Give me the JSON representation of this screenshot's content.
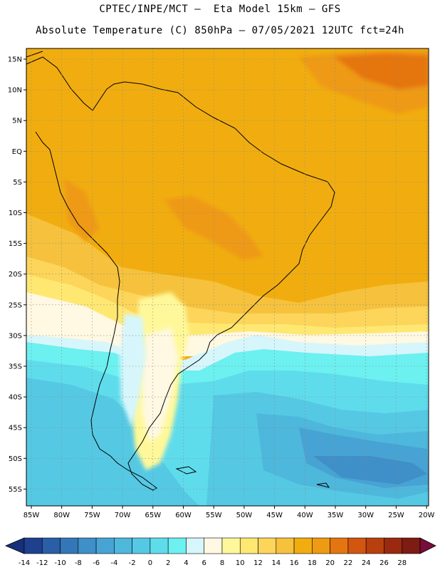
{
  "header": {
    "line1": "CPTEC/INPE/MCT –  Eta Model 15km – GFS",
    "line2": "Absolute Temperature (C) 850hPa – 07/05/2021 12UTC fct=24h"
  },
  "map": {
    "lat_labels": [
      "15N",
      "10N",
      "5N",
      "EQ",
      "5S",
      "10S",
      "15S",
      "20S",
      "25S",
      "30S",
      "35S",
      "40S",
      "45S",
      "50S",
      "55S"
    ],
    "lon_labels": [
      "85W",
      "80W",
      "75W",
      "70W",
      "65W",
      "60W",
      "55W",
      "50W",
      "45W",
      "40W",
      "35W",
      "30W",
      "25W",
      "20W"
    ],
    "lat_range": [
      16.5,
      -57.5
    ],
    "lon_range": [
      -85.5,
      -20
    ]
  },
  "colorbar": {
    "labels": [
      "-14",
      "-12",
      "-10",
      "-8",
      "-6",
      "-4",
      "-2",
      "0",
      "2",
      "4",
      "6",
      "8",
      "10",
      "12",
      "14",
      "16",
      "18",
      "20",
      "22",
      "24",
      "26",
      "28"
    ],
    "colors": [
      "#1f3f8f",
      "#2a5ea6",
      "#3377b8",
      "#3f8fc8",
      "#47a3d3",
      "#4eb7dc",
      "#55c9e4",
      "#5fdcec",
      "#6cf0f0",
      "#d6f6fb",
      "#fff8e2",
      "#fff89a",
      "#ffe872",
      "#fcd55a",
      "#f6c23d",
      "#f1ad10",
      "#ee9a12",
      "#e57510",
      "#d25510",
      "#b8400f",
      "#9a2a0f",
      "#7e1b12"
    ],
    "under_color": "#17307c",
    "over_color": "#7a0d3a"
  }
}
